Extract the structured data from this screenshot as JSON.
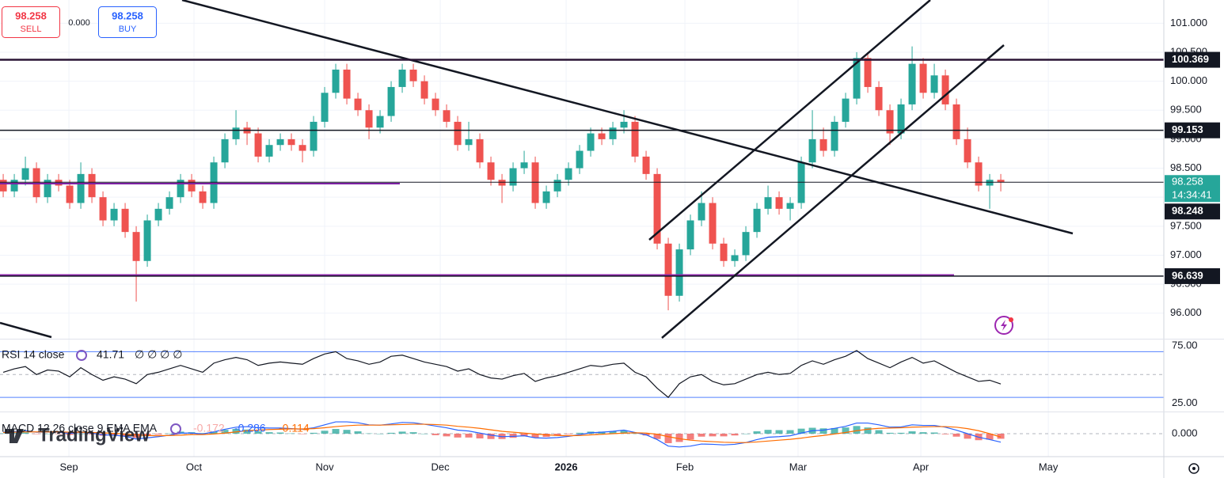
{
  "chart_data": {
    "type": "candlestick",
    "header": {
      "sell": 98.258,
      "sell_label": "SELL",
      "spread": "0.000",
      "buy": 98.258,
      "buy_label": "BUY"
    },
    "open": [
      98.3,
      98.1,
      98.3,
      98.5,
      98.0,
      98.3,
      98.2,
      97.9,
      98.4,
      98.0,
      97.6,
      97.8,
      97.4,
      96.9,
      97.6,
      97.8,
      98.0,
      98.3,
      98.1,
      97.9,
      98.6,
      99.0,
      99.2,
      99.1,
      98.7,
      98.9,
      99.0,
      98.9,
      98.8,
      99.3,
      99.8,
      100.2,
      99.7,
      99.5,
      99.2,
      99.4,
      99.9,
      100.2,
      100.0,
      99.7,
      99.5,
      99.3,
      98.9,
      99.0,
      98.6,
      98.3,
      98.2,
      98.5,
      98.6,
      97.9,
      98.1,
      98.3,
      98.5,
      98.8,
      99.1,
      99.0,
      99.2,
      99.3,
      98.7,
      98.4,
      97.2,
      96.3,
      97.1,
      97.6,
      97.9,
      97.2,
      96.9,
      97.0,
      97.4,
      97.8,
      98.0,
      97.8,
      97.9,
      98.6,
      99.0,
      98.8,
      99.3,
      99.7,
      100.4,
      99.9,
      99.5,
      99.1,
      99.6,
      100.3,
      99.8,
      100.1,
      99.6,
      99.0,
      98.6,
      98.2,
      98.3
    ],
    "high": [
      98.4,
      98.4,
      98.7,
      98.6,
      98.4,
      98.4,
      98.3,
      98.6,
      98.5,
      98.1,
      97.9,
      97.9,
      97.5,
      97.7,
      97.9,
      98.1,
      98.4,
      98.4,
      98.2,
      98.7,
      99.1,
      99.5,
      99.3,
      99.2,
      99.0,
      99.1,
      99.1,
      99.0,
      99.4,
      99.9,
      100.3,
      100.3,
      99.8,
      99.6,
      99.5,
      100.0,
      100.3,
      100.3,
      100.1,
      99.8,
      99.6,
      99.4,
      99.3,
      99.1,
      98.7,
      98.4,
      98.6,
      98.8,
      98.7,
      98.2,
      98.4,
      98.6,
      98.9,
      99.2,
      99.2,
      99.3,
      99.5,
      99.4,
      98.8,
      98.5,
      97.3,
      97.2,
      97.7,
      98.1,
      98.0,
      97.3,
      97.1,
      97.5,
      97.9,
      98.2,
      98.1,
      98.0,
      98.7,
      99.5,
      99.2,
      99.4,
      99.8,
      100.5,
      100.5,
      100.0,
      99.6,
      99.7,
      100.6,
      100.4,
      100.3,
      100.2,
      99.7,
      99.2,
      98.7,
      98.4,
      98.4
    ],
    "low": [
      98.0,
      98.0,
      98.2,
      97.9,
      97.9,
      98.1,
      97.8,
      97.8,
      97.9,
      97.5,
      97.5,
      97.3,
      96.2,
      96.8,
      97.5,
      97.7,
      97.9,
      98.0,
      97.8,
      97.8,
      98.5,
      98.9,
      98.9,
      98.6,
      98.6,
      98.8,
      98.8,
      98.6,
      98.7,
      99.2,
      99.7,
      99.6,
      99.4,
      99.0,
      99.1,
      99.3,
      99.8,
      99.9,
      99.6,
      99.4,
      99.2,
      98.8,
      98.8,
      98.5,
      98.2,
      97.9,
      98.1,
      98.4,
      97.8,
      97.8,
      98.0,
      98.2,
      98.4,
      98.7,
      98.9,
      98.9,
      99.1,
      98.6,
      98.3,
      97.1,
      96.05,
      96.2,
      97.0,
      97.5,
      97.1,
      96.8,
      96.8,
      96.9,
      97.3,
      97.7,
      97.7,
      97.6,
      97.8,
      98.5,
      98.7,
      98.7,
      99.2,
      99.6,
      99.8,
      99.4,
      98.9,
      99.0,
      99.5,
      99.7,
      99.7,
      99.5,
      98.9,
      98.5,
      98.1,
      97.8,
      98.1
    ],
    "close": [
      98.1,
      98.3,
      98.5,
      98.0,
      98.3,
      98.2,
      97.9,
      98.4,
      98.0,
      97.6,
      97.8,
      97.4,
      96.9,
      97.6,
      97.8,
      98.0,
      98.3,
      98.1,
      97.9,
      98.6,
      99.0,
      99.2,
      99.1,
      98.7,
      98.9,
      99.0,
      98.9,
      98.8,
      99.3,
      99.8,
      100.2,
      99.7,
      99.5,
      99.2,
      99.4,
      99.9,
      100.2,
      100.0,
      99.7,
      99.5,
      99.3,
      98.9,
      99.0,
      98.6,
      98.3,
      98.2,
      98.5,
      98.6,
      97.9,
      98.1,
      98.3,
      98.5,
      98.8,
      99.1,
      99.0,
      99.2,
      99.3,
      98.7,
      98.4,
      97.2,
      96.3,
      97.1,
      97.6,
      97.9,
      97.2,
      96.9,
      97.0,
      97.4,
      97.8,
      98.0,
      97.8,
      97.9,
      98.6,
      99.0,
      98.8,
      99.3,
      99.7,
      100.4,
      99.9,
      99.5,
      99.1,
      99.6,
      100.3,
      99.8,
      100.1,
      99.6,
      99.0,
      98.6,
      98.2,
      98.3,
      98.258
    ],
    "up_color": "#26a69a",
    "down_color": "#ef5350",
    "ylim": [
      95.56,
      101.4
    ],
    "yticks": [
      {
        "value": 96,
        "label": "96.000"
      },
      {
        "value": 96.5,
        "label": "96.500"
      },
      {
        "value": 97,
        "label": "97.000"
      },
      {
        "value": 97.5,
        "label": "97.500"
      },
      {
        "value": 98,
        "label": "98.000"
      },
      {
        "value": 98.5,
        "label": "98.500"
      },
      {
        "value": 99,
        "label": "99.000"
      },
      {
        "value": 99.5,
        "label": "99.500"
      },
      {
        "value": 100,
        "label": "100.000"
      },
      {
        "value": 100.5,
        "label": "100.500"
      },
      {
        "value": 101,
        "label": "101.000"
      }
    ],
    "xlim": [
      -0.29,
      104.71
    ],
    "xticks": [
      {
        "value": 5.93,
        "label": "Sep"
      },
      {
        "value": 17.21,
        "label": "Oct"
      },
      {
        "value": 29,
        "label": "Nov"
      },
      {
        "value": 39.43,
        "label": "Dec"
      },
      {
        "value": 50.79,
        "label": "2026",
        "strong": true
      },
      {
        "value": 61.5,
        "label": "Feb"
      },
      {
        "value": 71.71,
        "label": "Mar"
      },
      {
        "value": 82.79,
        "label": "Apr"
      },
      {
        "value": 94.29,
        "label": "May"
      }
    ],
    "grid": true,
    "levels": [
      100.369,
      99.153,
      96.639
    ],
    "last_price": 98.258,
    "countdown": "14:34:41",
    "prev_close": 98.248,
    "watermark": "TradingView",
    "rsi": {
      "title": "RSI 14 close",
      "value": 41.71,
      "extras": "∅ ∅ ∅ ∅",
      "color": "#131722",
      "values": [
        52,
        55,
        57,
        50,
        54,
        53,
        48,
        56,
        50,
        45,
        48,
        46,
        42,
        50,
        52,
        55,
        58,
        55,
        52,
        60,
        63,
        65,
        63,
        58,
        60,
        61,
        60,
        59,
        64,
        68,
        70,
        64,
        62,
        59,
        61,
        66,
        67,
        64,
        61,
        59,
        57,
        53,
        55,
        50,
        47,
        46,
        49,
        51,
        44,
        47,
        49,
        52,
        55,
        58,
        57,
        59,
        60,
        52,
        48,
        38,
        30,
        42,
        48,
        50,
        44,
        41,
        42,
        46,
        50,
        52,
        50,
        51,
        58,
        62,
        59,
        63,
        66,
        71,
        64,
        60,
        56,
        61,
        65,
        60,
        62,
        57,
        52,
        48,
        44,
        45,
        41.71
      ],
      "ylim": [
        19,
        80
      ],
      "yticks": [
        {
          "value": 75,
          "label": "75.00"
        },
        {
          "value": 25,
          "label": "25.00"
        }
      ],
      "bands": [
        70,
        30
      ],
      "mid": 50
    },
    "macd": {
      "title": "MACD 12 26 close 9 EMA EMA",
      "histogram_value": -0.172,
      "macd_value": -0.286,
      "signal_value": -0.114,
      "macd_color": "#2962ff",
      "signal_color": "#ff6d00",
      "hist_up_color": "#26a69a",
      "hist_down_color": "#ef5350",
      "macd": [
        0.05,
        0.07,
        0.1,
        0.05,
        0.06,
        0.05,
        0.01,
        0.05,
        0.02,
        -0.04,
        -0.05,
        -0.09,
        -0.18,
        -0.14,
        -0.1,
        -0.05,
        0.02,
        0.02,
        -0.01,
        0.06,
        0.15,
        0.22,
        0.24,
        0.2,
        0.19,
        0.19,
        0.17,
        0.15,
        0.2,
        0.3,
        0.4,
        0.4,
        0.37,
        0.3,
        0.29,
        0.33,
        0.38,
        0.37,
        0.32,
        0.26,
        0.2,
        0.12,
        0.09,
        0.02,
        -0.05,
        -0.1,
        -0.09,
        -0.07,
        -0.14,
        -0.15,
        -0.13,
        -0.09,
        -0.03,
        0.03,
        0.05,
        0.08,
        0.12,
        0.04,
        -0.04,
        -0.2,
        -0.42,
        -0.45,
        -0.42,
        -0.35,
        -0.36,
        -0.38,
        -0.36,
        -0.3,
        -0.2,
        -0.12,
        -0.1,
        -0.07,
        0.02,
        0.1,
        0.12,
        0.18,
        0.25,
        0.36,
        0.36,
        0.3,
        0.22,
        0.23,
        0.3,
        0.28,
        0.28,
        0.22,
        0.12,
        0.0,
        -0.12,
        -0.2,
        -0.286
      ],
      "signal": [
        0.04,
        0.05,
        0.06,
        0.06,
        0.06,
        0.06,
        0.05,
        0.05,
        0.04,
        0.03,
        0.01,
        -0.01,
        -0.04,
        -0.06,
        -0.07,
        -0.06,
        -0.05,
        -0.03,
        -0.03,
        -0.01,
        0.02,
        0.06,
        0.1,
        0.12,
        0.14,
        0.15,
        0.16,
        0.16,
        0.17,
        0.2,
        0.24,
        0.27,
        0.29,
        0.29,
        0.29,
        0.3,
        0.31,
        0.32,
        0.32,
        0.31,
        0.29,
        0.25,
        0.22,
        0.18,
        0.13,
        0.08,
        0.05,
        0.02,
        -0.01,
        -0.04,
        -0.06,
        -0.07,
        -0.06,
        -0.04,
        -0.02,
        0.0,
        0.02,
        0.03,
        0.02,
        -0.02,
        -0.1,
        -0.17,
        -0.22,
        -0.25,
        -0.27,
        -0.29,
        -0.3,
        -0.3,
        -0.28,
        -0.25,
        -0.22,
        -0.19,
        -0.15,
        -0.1,
        -0.06,
        -0.01,
        0.04,
        0.1,
        0.15,
        0.18,
        0.19,
        0.2,
        0.22,
        0.23,
        0.24,
        0.24,
        0.22,
        0.17,
        0.1,
        0.0,
        -0.114
      ],
      "histogram": [
        0.01,
        0.02,
        0.04,
        -0.01,
        0,
        -0.01,
        -0.04,
        0,
        -0.02,
        -0.07,
        -0.06,
        -0.08,
        -0.14,
        -0.08,
        -0.03,
        0.01,
        0.07,
        0.05,
        0.02,
        0.07,
        0.13,
        0.16,
        0.14,
        0.08,
        0.05,
        0.04,
        0.01,
        -0.01,
        0.03,
        0.1,
        0.16,
        0.13,
        0.08,
        0.01,
        0,
        0.03,
        0.07,
        0.05,
        0,
        -0.05,
        -0.09,
        -0.13,
        -0.13,
        -0.16,
        -0.18,
        -0.18,
        -0.14,
        -0.09,
        -0.13,
        -0.11,
        -0.07,
        -0.02,
        0.03,
        0.07,
        0.07,
        0.08,
        0.1,
        0.01,
        -0.06,
        -0.18,
        -0.32,
        -0.28,
        -0.2,
        -0.1,
        -0.09,
        -0.09,
        -0.06,
        0,
        0.08,
        0.13,
        0.12,
        0.12,
        0.17,
        0.2,
        0.18,
        0.19,
        0.21,
        0.26,
        0.21,
        0.12,
        0.03,
        0.03,
        0.08,
        0.05,
        0.04,
        -0.02,
        -0.1,
        -0.17,
        -0.22,
        -0.2,
        -0.172
      ],
      "ylim": [
        -0.75,
        0.75
      ],
      "yticks": [
        {
          "value": 0,
          "label": "0.000"
        }
      ]
    }
  }
}
